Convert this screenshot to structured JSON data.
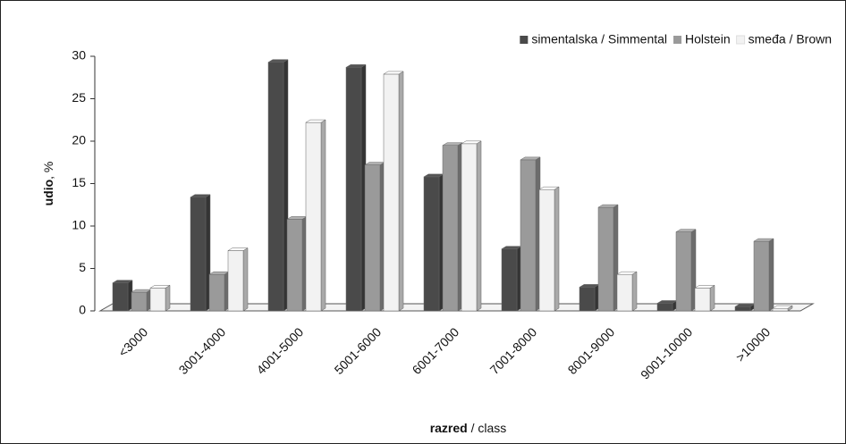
{
  "chart_data": {
    "type": "bar",
    "ylabel": [
      "udio",
      ", %"
    ],
    "xlabel": [
      "razred",
      " / class"
    ],
    "categories": [
      "<3000",
      "3001-4000",
      "4001-5000",
      "5001-6000",
      "6001-7000",
      "7001-8000",
      "8001-9000",
      "9001-10000",
      ">10000"
    ],
    "series": [
      {
        "name": "simentalska / Simmental",
        "color": "#4a4a4a",
        "values": [
          3.3,
          13.4,
          29.3,
          28.7,
          15.8,
          7.3,
          2.8,
          0.9,
          0.5
        ]
      },
      {
        "name": "Holstein",
        "color": "#9a9a9a",
        "values": [
          2.2,
          4.3,
          10.8,
          17.2,
          19.5,
          17.8,
          12.2,
          9.3,
          8.2
        ]
      },
      {
        "name": "smeđa / Brown",
        "color": "#f2f2f2",
        "values": [
          2.7,
          7.1,
          22.2,
          27.9,
          19.7,
          14.3,
          4.3,
          2.7,
          0.3
        ]
      }
    ],
    "ylim": [
      0,
      30
    ],
    "yticks": [
      0,
      5,
      10,
      15,
      20,
      25,
      30
    ],
    "legend": "top-right"
  }
}
